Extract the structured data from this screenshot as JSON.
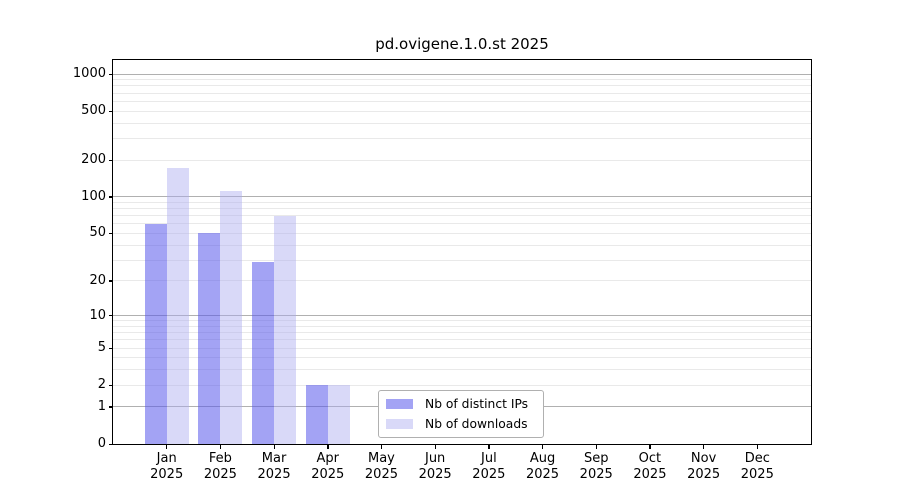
{
  "chart_data": {
    "type": "bar",
    "title": "pd.ovigene.1.0.st 2025",
    "categories": [
      "Jan",
      "Feb",
      "Mar",
      "Apr",
      "May",
      "Jun",
      "Jul",
      "Aug",
      "Sep",
      "Oct",
      "Nov",
      "Dec"
    ],
    "x_year_label": "2025",
    "series": [
      {
        "name": "Nb of distinct IPs",
        "color": "#5858eb",
        "alpha": 0.55,
        "values": [
          60,
          50,
          29,
          2,
          0,
          0,
          0,
          0,
          0,
          0,
          0,
          0
        ]
      },
      {
        "name": "Nb of downloads",
        "color": "#aaaaf0",
        "alpha": 0.45,
        "values": [
          173,
          112,
          70,
          2,
          0,
          0,
          0,
          0,
          0,
          0,
          0,
          0
        ]
      }
    ],
    "y_ticks": [
      0,
      1,
      2,
      5,
      10,
      20,
      50,
      100,
      200,
      500,
      1000
    ],
    "y_scale": "log10(1+x)",
    "ylim": [
      0,
      1300
    ],
    "xlabel": "",
    "ylabel": "",
    "grid": "horizontal",
    "grid_major_color": "#b0b0b0",
    "grid_minor_color": "#e9e9e9",
    "legend_position": "lower-center"
  }
}
